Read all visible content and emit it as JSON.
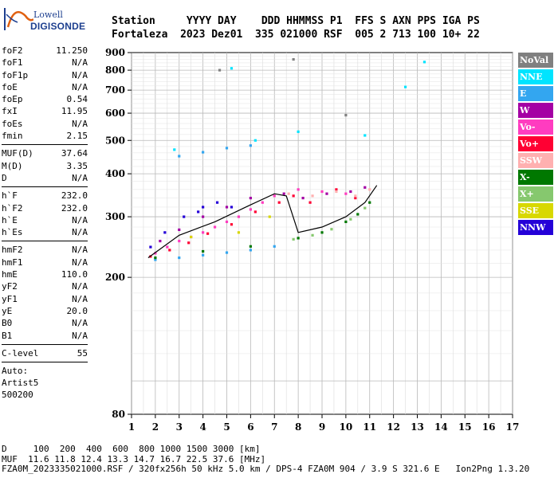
{
  "logo": {
    "brand": "Lowell",
    "model": "DIGISONDE"
  },
  "header": {
    "labels": "Station     YYYY DAY    DDD HHMMSS P1  FFS S AXN PPS IGA PS",
    "values": "Fortaleza  2023 Dez01  335 021000 RSF  005 2 713 100 10+ 22"
  },
  "params": {
    "group1": [
      {
        "name": "foF2",
        "value": "11.250"
      },
      {
        "name": "foF1",
        "value": "N/A"
      },
      {
        "name": "foF1p",
        "value": "N/A"
      },
      {
        "name": "foE",
        "value": "N/A"
      },
      {
        "name": "foEp",
        "value": "0.54"
      },
      {
        "name": "fxI",
        "value": "11.95"
      },
      {
        "name": "foEs",
        "value": "N/A"
      },
      {
        "name": "fmin",
        "value": "2.15"
      }
    ],
    "group2": [
      {
        "name": "MUF(D)",
        "value": "37.64"
      },
      {
        "name": "M(D)",
        "value": "3.35"
      },
      {
        "name": "D",
        "value": "N/A"
      }
    ],
    "group3": [
      {
        "name": "h`F",
        "value": "232.0"
      },
      {
        "name": "h`F2",
        "value": "232.0"
      },
      {
        "name": "h`E",
        "value": "N/A"
      },
      {
        "name": "h`Es",
        "value": "N/A"
      }
    ],
    "group4": [
      {
        "name": "hmF2",
        "value": "N/A"
      },
      {
        "name": "hmF1",
        "value": "N/A"
      },
      {
        "name": "hmE",
        "value": "110.0"
      },
      {
        "name": "yF2",
        "value": "N/A"
      },
      {
        "name": "yF1",
        "value": "N/A"
      },
      {
        "name": "yE",
        "value": "20.0"
      },
      {
        "name": "B0",
        "value": "N/A"
      },
      {
        "name": "B1",
        "value": "N/A"
      }
    ],
    "group5": [
      {
        "name": "C-level",
        "value": "55"
      }
    ],
    "autoscale": {
      "line1": "Auto:",
      "line2": "Artist5",
      "line3": "500200"
    }
  },
  "legend": [
    {
      "label": "NoVal",
      "color": "#808080"
    },
    {
      "label": "NNE",
      "color": "#00e4ff"
    },
    {
      "label": "E",
      "color": "#33a6f0"
    },
    {
      "label": "W",
      "color": "#a400a4"
    },
    {
      "label": "Vo-",
      "color": "#ff3cc0"
    },
    {
      "label": "Vo+",
      "color": "#ff0033"
    },
    {
      "label": "SSW",
      "color": "#ffb0b0"
    },
    {
      "label": "X-",
      "color": "#007800"
    },
    {
      "label": "X+",
      "color": "#86c86e"
    },
    {
      "label": "SSE",
      "color": "#d8d800"
    },
    {
      "label": "NNW",
      "color": "#2400d8"
    }
  ],
  "footer": {
    "line1": "D     100  200  400  600  800 1000 1500 3000 [km]",
    "line2": "MUF  11.6 11.8 12.4 13.3 14.7 16.7 22.5 37.6 [MHz]",
    "line3": "FZA0M_2023335021000.RSF / 320fx256h 50 kHz 5.0 km / DPS-4 FZA0M 904 / 3.9 S 321.6 E   Ion2Png 1.3.20"
  },
  "chart_data": {
    "type": "scatter",
    "title": "",
    "xlabel": "",
    "ylabel": "",
    "xlim": [
      1,
      17
    ],
    "ylim": [
      80,
      900
    ],
    "yscale": "log",
    "grid": true,
    "x_ticks": [
      1,
      2,
      3,
      4,
      5,
      6,
      7,
      8,
      9,
      10,
      11,
      12,
      13,
      14,
      15,
      16,
      17
    ],
    "y_ticks": [
      80,
      200,
      300,
      400,
      500,
      600,
      700,
      800,
      900
    ],
    "series": [
      {
        "name": "Vo-",
        "points": [
          [
            2.0,
            235
          ],
          [
            2.5,
            245
          ],
          [
            3.0,
            255
          ],
          [
            3.5,
            262
          ],
          [
            4.0,
            270
          ],
          [
            4.5,
            280
          ],
          [
            5.0,
            290
          ],
          [
            5.5,
            300
          ],
          [
            6.0,
            315
          ],
          [
            6.5,
            330
          ],
          [
            7.0,
            345
          ],
          [
            8.0,
            360
          ],
          [
            9.0,
            355
          ],
          [
            10.0,
            350
          ]
        ]
      },
      {
        "name": "Vo+",
        "points": [
          [
            1.8,
            230
          ],
          [
            2.6,
            240
          ],
          [
            3.4,
            252
          ],
          [
            4.2,
            268
          ],
          [
            5.2,
            285
          ],
          [
            6.2,
            310
          ],
          [
            7.2,
            330
          ],
          [
            7.8,
            345
          ],
          [
            8.5,
            330
          ],
          [
            9.6,
            360
          ],
          [
            10.4,
            340
          ]
        ]
      },
      {
        "name": "W",
        "points": [
          [
            2.2,
            255
          ],
          [
            3.0,
            275
          ],
          [
            4.0,
            300
          ],
          [
            5.0,
            320
          ],
          [
            6.0,
            340
          ],
          [
            7.4,
            350
          ],
          [
            8.2,
            340
          ],
          [
            9.2,
            350
          ],
          [
            10.2,
            355
          ],
          [
            10.8,
            365
          ]
        ]
      },
      {
        "name": "NNW",
        "points": [
          [
            1.8,
            245
          ],
          [
            2.4,
            270
          ],
          [
            3.2,
            300
          ],
          [
            4.0,
            320
          ],
          [
            4.6,
            330
          ],
          [
            5.2,
            320
          ],
          [
            3.8,
            310
          ]
        ]
      },
      {
        "name": "E",
        "points": [
          [
            2.0,
            225
          ],
          [
            3.0,
            228
          ],
          [
            4.0,
            232
          ],
          [
            5.0,
            236
          ],
          [
            6.0,
            240
          ],
          [
            7.0,
            246
          ],
          [
            3.0,
            450
          ],
          [
            4.0,
            462
          ],
          [
            5.0,
            475
          ],
          [
            6.0,
            483
          ]
        ]
      },
      {
        "name": "X-",
        "points": [
          [
            2.0,
            228
          ],
          [
            4.0,
            238
          ],
          [
            6.0,
            246
          ],
          [
            8.0,
            260
          ],
          [
            9.0,
            270
          ],
          [
            10.0,
            290
          ],
          [
            10.5,
            305
          ],
          [
            11.0,
            330
          ]
        ]
      },
      {
        "name": "X+",
        "points": [
          [
            7.8,
            258
          ],
          [
            8.6,
            265
          ],
          [
            9.4,
            276
          ],
          [
            10.2,
            295
          ],
          [
            10.8,
            318
          ]
        ]
      },
      {
        "name": "SSW",
        "points": [
          [
            7.6,
            350
          ],
          [
            8.6,
            345
          ],
          [
            9.6,
            355
          ],
          [
            10.4,
            345
          ],
          [
            11.0,
            360
          ]
        ]
      },
      {
        "name": "SSE",
        "points": [
          [
            3.5,
            262
          ],
          [
            5.5,
            270
          ],
          [
            6.8,
            300
          ]
        ]
      },
      {
        "name": "NNE",
        "points": [
          [
            6.2,
            500
          ],
          [
            8.0,
            530
          ],
          [
            10.8,
            517
          ],
          [
            12.5,
            715
          ],
          [
            13.3,
            845
          ],
          [
            5.2,
            810
          ],
          [
            2.8,
            470
          ]
        ]
      },
      {
        "name": "NoVal",
        "points": [
          [
            10.0,
            592
          ],
          [
            4.7,
            800
          ],
          [
            7.8,
            860
          ]
        ]
      }
    ],
    "trace": {
      "points": [
        [
          1.7,
          228
        ],
        [
          3.0,
          265
        ],
        [
          4.5,
          290
        ],
        [
          6.0,
          325
        ],
        [
          7.0,
          350
        ],
        [
          7.5,
          345
        ],
        [
          8.0,
          270
        ],
        [
          9.0,
          280
        ],
        [
          10.0,
          300
        ],
        [
          10.8,
          330
        ],
        [
          11.3,
          370
        ]
      ]
    }
  }
}
